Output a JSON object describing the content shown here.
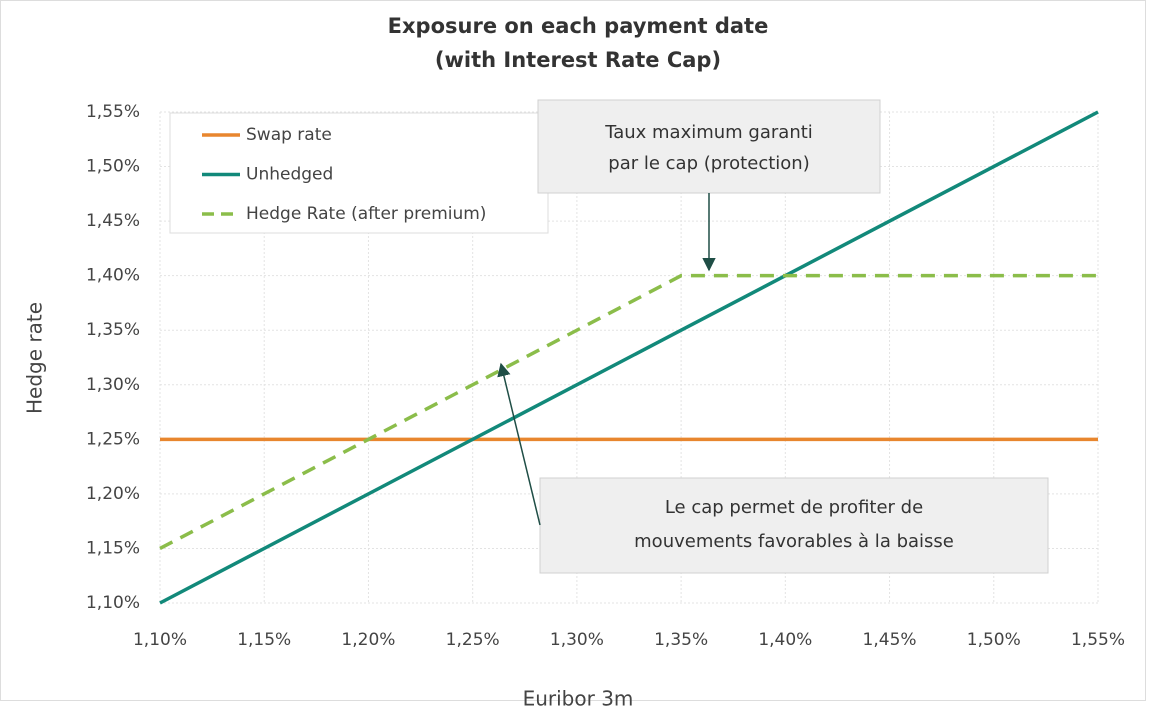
{
  "chart_data": {
    "type": "line",
    "title": [
      "Exposure on each payment date",
      "(with Interest Rate Cap)"
    ],
    "x_label": "Euribor 3m",
    "y_label": "Hedge rate",
    "x": [
      1.1,
      1.35,
      1.55
    ],
    "series": [
      {
        "name": "Swap rate",
        "color": "#e8862e",
        "dash": false,
        "values": [
          1.25,
          1.25,
          1.25
        ]
      },
      {
        "name": "Unhedged",
        "color": "#12897a",
        "dash": false,
        "values": [
          1.1,
          1.35,
          1.55
        ]
      },
      {
        "name": "Hedge Rate (after premium)",
        "color": "#8bbd4a",
        "dash": true,
        "values": [
          1.15,
          1.4,
          1.4
        ]
      }
    ],
    "xlim": [
      1.1,
      1.55
    ],
    "ylim": [
      1.1,
      1.55
    ],
    "xticks": [
      {
        "value": 1.1,
        "label": "1,10%"
      },
      {
        "value": 1.15,
        "label": "1,15%"
      },
      {
        "value": 1.2,
        "label": "1,20%"
      },
      {
        "value": 1.25,
        "label": "1,25%"
      },
      {
        "value": 1.3,
        "label": "1,30%"
      },
      {
        "value": 1.35,
        "label": "1,35%"
      },
      {
        "value": 1.4,
        "label": "1,40%"
      },
      {
        "value": 1.45,
        "label": "1,45%"
      },
      {
        "value": 1.5,
        "label": "1,50%"
      },
      {
        "value": 1.55,
        "label": "1,55%"
      }
    ],
    "yticks": [
      {
        "value": 1.1,
        "label": "1,10%"
      },
      {
        "value": 1.15,
        "label": "1,15%"
      },
      {
        "value": 1.2,
        "label": "1,20%"
      },
      {
        "value": 1.25,
        "label": "1,25%"
      },
      {
        "value": 1.3,
        "label": "1,30%"
      },
      {
        "value": 1.35,
        "label": "1,35%"
      },
      {
        "value": 1.4,
        "label": "1,40%"
      },
      {
        "value": 1.45,
        "label": "1,45%"
      },
      {
        "value": 1.5,
        "label": "1,50%"
      },
      {
        "value": 1.55,
        "label": "1,55%"
      }
    ],
    "grid": true,
    "legend": "upper left",
    "annotations": [
      {
        "lines": [
          "Taux maximum garanti",
          "par le cap (protection)"
        ]
      },
      {
        "lines": [
          "Le cap permet de profiter de",
          "mouvements favorables à la baisse"
        ]
      }
    ]
  }
}
